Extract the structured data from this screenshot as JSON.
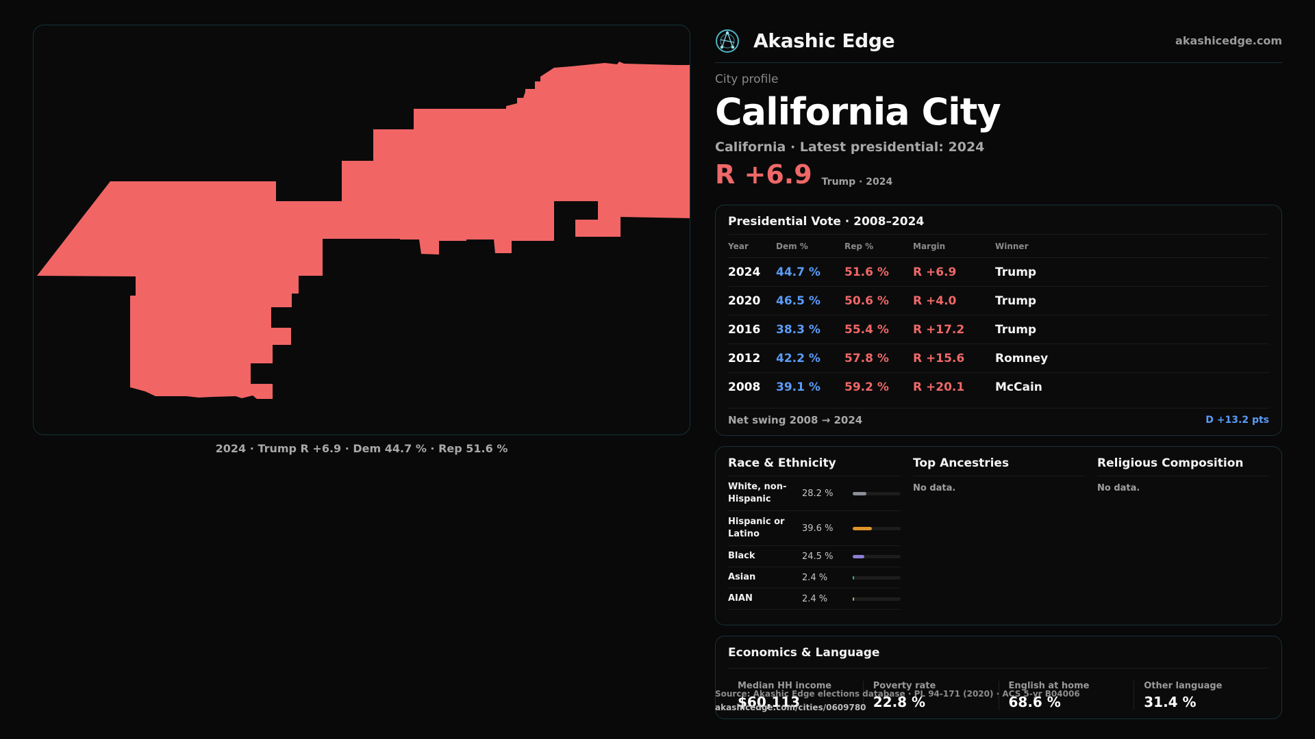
{
  "brand": {
    "name": "Akashic Edge",
    "url": "akashicedge.com",
    "logo_icon": "network-globe-icon"
  },
  "header": {
    "eyebrow": "City profile",
    "city": "California City",
    "subtitle": "California · Latest presidential: 2024",
    "margin": "R +6.9",
    "margin_sub": "Trump · 2024"
  },
  "map": {
    "caption": "2024 · Trump  R +6.9 · Dem 44.7 % · Rep 51.6 %",
    "fill_color": "#f26565"
  },
  "vote": {
    "title": "Presidential Vote · 2008–2024",
    "headers": {
      "year": "Year",
      "dem": "Dem %",
      "rep": "Rep %",
      "margin": "Margin",
      "winner": "Winner"
    },
    "rows": [
      {
        "year": "2024",
        "dem": "44.7 %",
        "rep": "51.6 %",
        "margin": "R +6.9",
        "winner": "Trump"
      },
      {
        "year": "2020",
        "dem": "46.5 %",
        "rep": "50.6 %",
        "margin": "R +4.0",
        "winner": "Trump"
      },
      {
        "year": "2016",
        "dem": "38.3 %",
        "rep": "55.4 %",
        "margin": "R +17.2",
        "winner": "Trump"
      },
      {
        "year": "2012",
        "dem": "42.2 %",
        "rep": "57.8 %",
        "margin": "R +15.6",
        "winner": "Romney"
      },
      {
        "year": "2008",
        "dem": "39.1 %",
        "rep": "59.2 %",
        "margin": "R +20.1",
        "winner": "McCain"
      }
    ],
    "net_label": "Net swing 2008 → 2024",
    "net_value": "D +13.2 pts"
  },
  "race": {
    "title": "Race & Ethnicity",
    "rows": [
      {
        "label": "White, non-Hispanic",
        "pct": "28.2 %",
        "value": 28.2,
        "color": "#8a8f9a"
      },
      {
        "label": "Hispanic or Latino",
        "pct": "39.6 %",
        "value": 39.6,
        "color": "#e0952a"
      },
      {
        "label": "Black",
        "pct": "24.5 %",
        "value": 24.5,
        "color": "#8b7fd6"
      },
      {
        "label": "Asian",
        "pct": "2.4 %",
        "value": 2.4,
        "color": "#3fae8f"
      },
      {
        "label": "AIAN",
        "pct": "2.4 %",
        "value": 2.4,
        "color": "#c9a46a"
      }
    ]
  },
  "ancestries": {
    "title": "Top Ancestries",
    "empty": "No data."
  },
  "religion": {
    "title": "Religious Composition",
    "empty": "No data."
  },
  "econ": {
    "title": "Economics & Language",
    "cells": [
      {
        "label": "Median HH income",
        "value": "$60,113"
      },
      {
        "label": "Poverty rate",
        "value": "22.8 %"
      },
      {
        "label": "English at home",
        "value": "68.6 %"
      },
      {
        "label": "Other language",
        "value": "31.4 %"
      }
    ]
  },
  "footer": {
    "source": "Source: Akashic Edge elections database · PL 94-171 (2020) · ACS 5-yr B04006",
    "url": "akashicedge.com/cities/0609780"
  }
}
